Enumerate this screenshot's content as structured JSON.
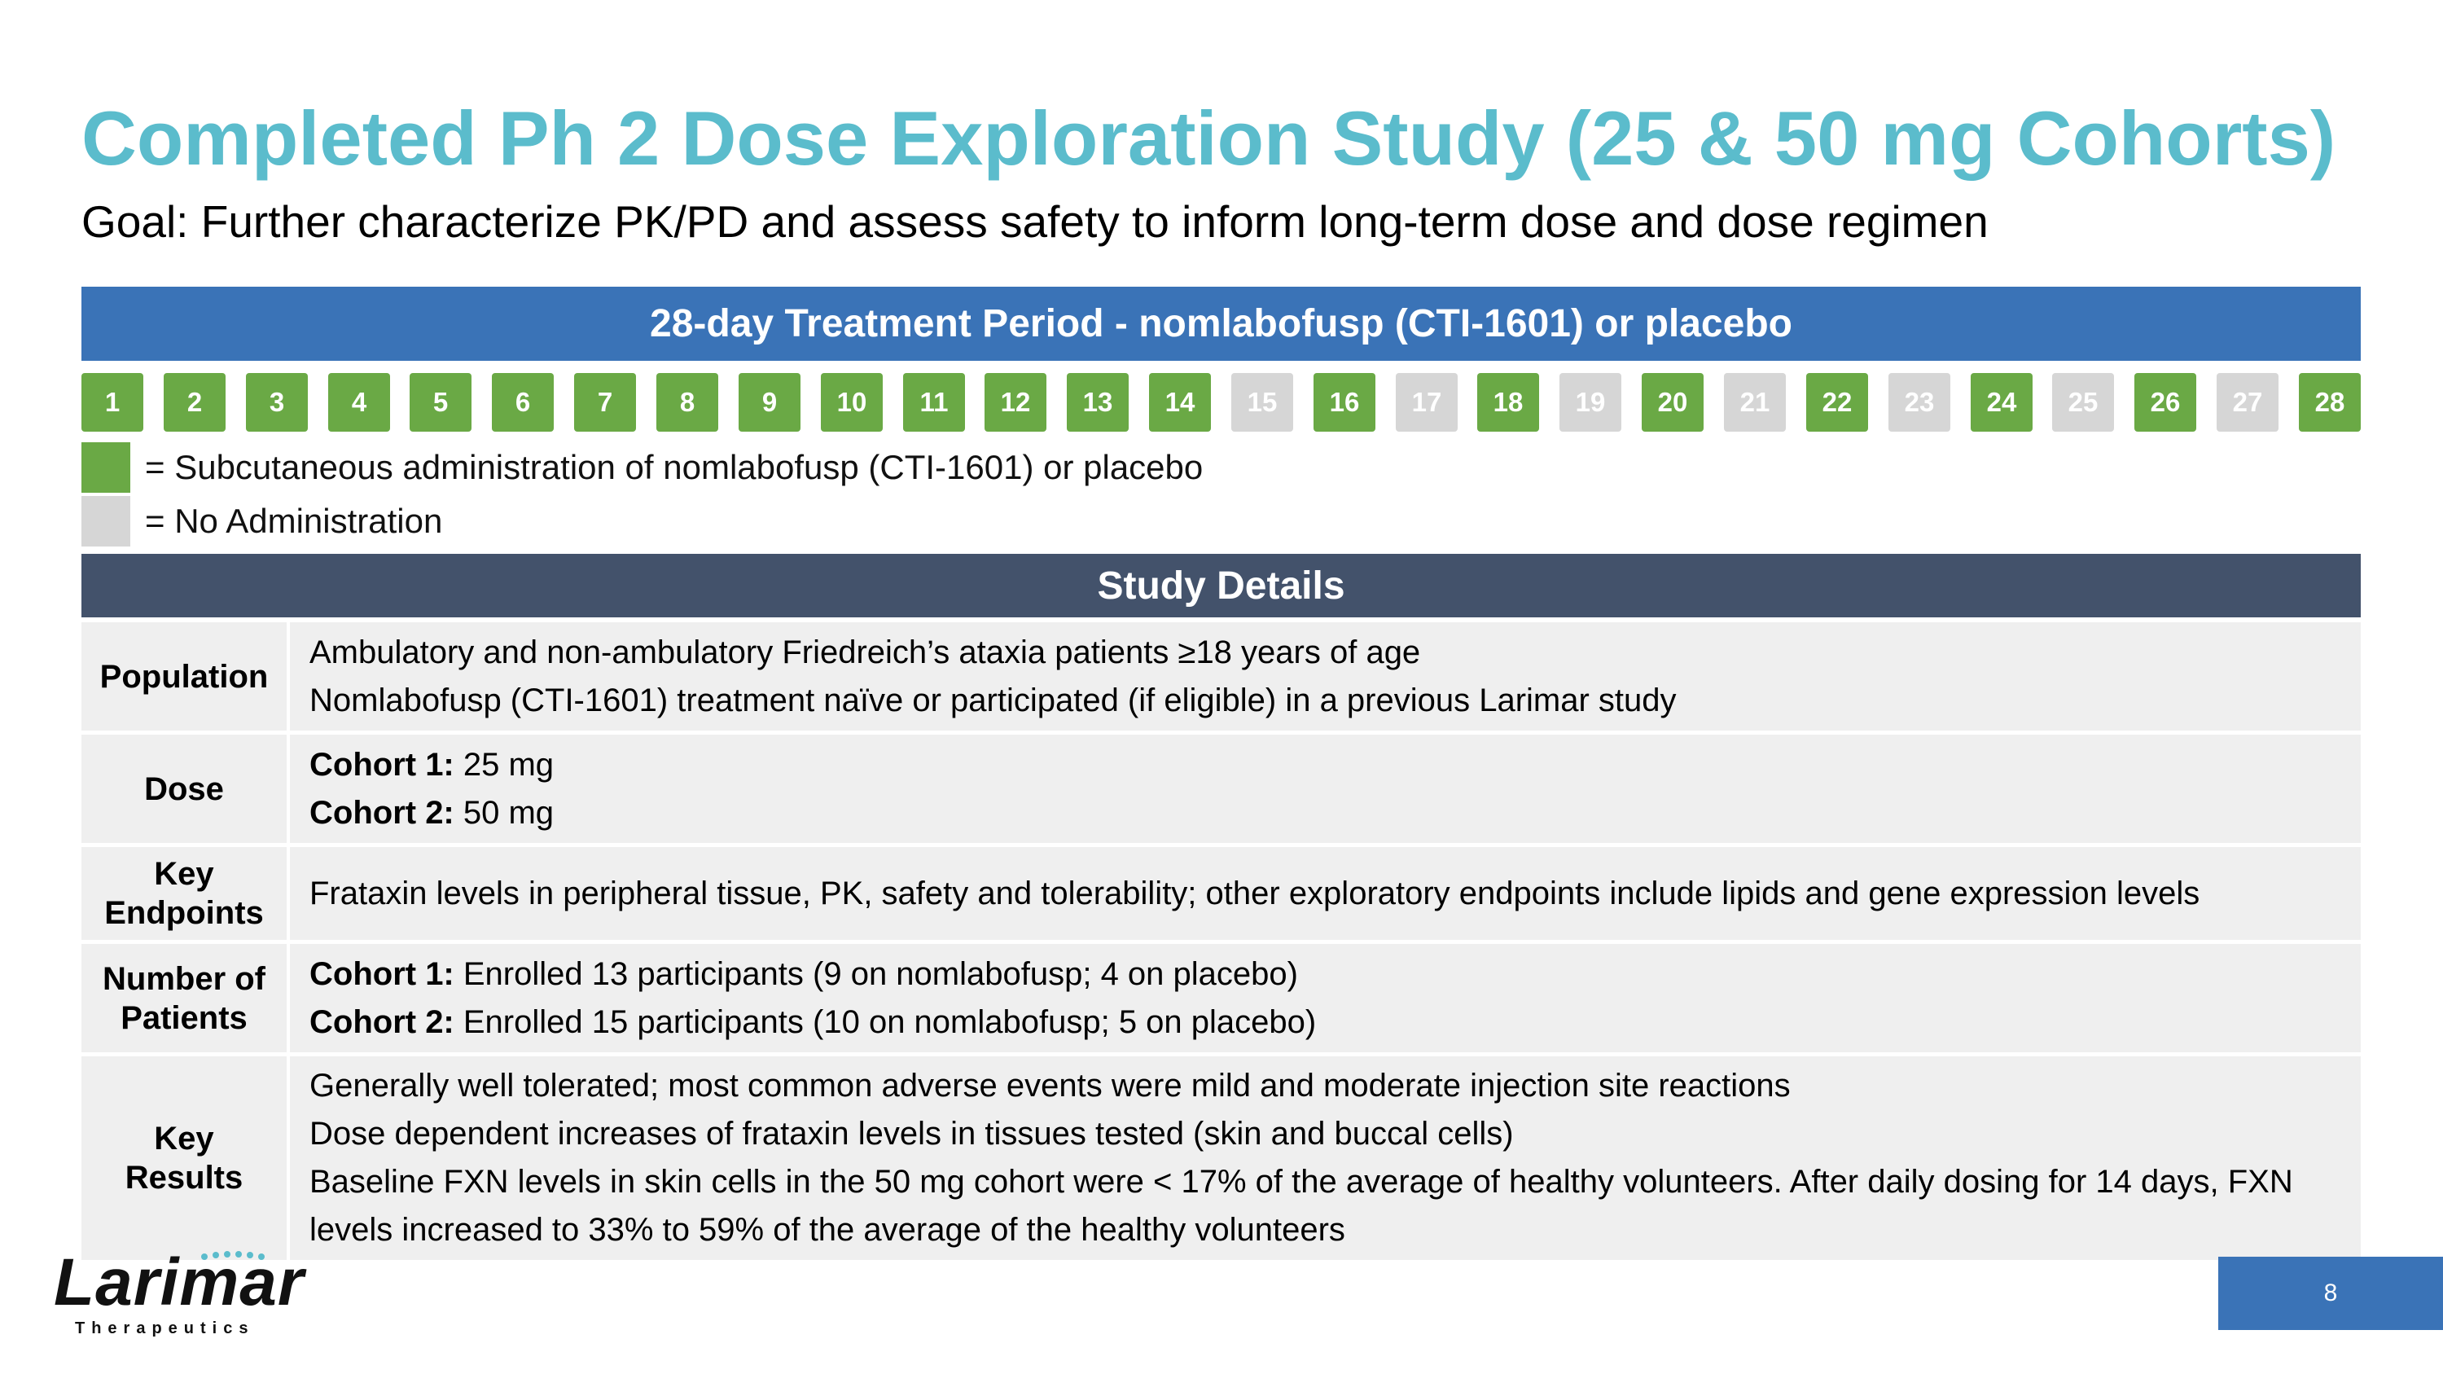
{
  "title": "Completed Ph 2 Dose Exploration Study (25 & 50 mg Cohorts)",
  "goal": "Goal: Further characterize PK/PD and assess safety to inform long-term dose and dose regimen",
  "treatment_header": "28-day Treatment Period - nomlabofusp (CTI-1601) or placebo",
  "days": [
    {
      "label": "1",
      "administered": true
    },
    {
      "label": "2",
      "administered": true
    },
    {
      "label": "3",
      "administered": true
    },
    {
      "label": "4",
      "administered": true
    },
    {
      "label": "5",
      "administered": true
    },
    {
      "label": "6",
      "administered": true
    },
    {
      "label": "7",
      "administered": true
    },
    {
      "label": "8",
      "administered": true
    },
    {
      "label": "9",
      "administered": true
    },
    {
      "label": "10",
      "administered": true
    },
    {
      "label": "11",
      "administered": true
    },
    {
      "label": "12",
      "administered": true
    },
    {
      "label": "13",
      "administered": true
    },
    {
      "label": "14",
      "administered": true
    },
    {
      "label": "15",
      "administered": false
    },
    {
      "label": "16",
      "administered": true
    },
    {
      "label": "17",
      "administered": false
    },
    {
      "label": "18",
      "administered": true
    },
    {
      "label": "19",
      "administered": false
    },
    {
      "label": "20",
      "administered": true
    },
    {
      "label": "21",
      "administered": false
    },
    {
      "label": "22",
      "administered": true
    },
    {
      "label": "23",
      "administered": false
    },
    {
      "label": "24",
      "administered": true
    },
    {
      "label": "25",
      "administered": false
    },
    {
      "label": "26",
      "administered": true
    },
    {
      "label": "27",
      "administered": false
    },
    {
      "label": "28",
      "administered": true
    }
  ],
  "legend": {
    "admin": "= Subcutaneous administration of nomlabofusp (CTI-1601) or placebo",
    "none": "= No Administration"
  },
  "details_header": "Study Details",
  "population": {
    "label": "Population",
    "line1": "Ambulatory and non-ambulatory Friedreich’s ataxia patients ≥18 years of age",
    "line2": "Nomlabofusp (CTI-1601) treatment naïve or participated (if eligible) in a previous Larimar study"
  },
  "dose": {
    "label": "Dose",
    "c1_label": "Cohort 1:",
    "c1_value": " 25 mg",
    "c2_label": "Cohort 2:",
    "c2_value": " 50 mg"
  },
  "endpoints": {
    "label_line1": "Key",
    "label_line2": "Endpoints",
    "text": "Frataxin levels in peripheral tissue, PK, safety and tolerability; other exploratory endpoints include lipids and gene expression levels"
  },
  "patients": {
    "label_line1": "Number of",
    "label_line2": "Patients",
    "c1_label": "Cohort 1:",
    "c1_value": " Enrolled 13 participants (9 on nomlabofusp; 4 on placebo)",
    "c2_label": "Cohort 2:",
    "c2_value": " Enrolled 15 participants (10 on nomlabofusp; 5 on placebo)"
  },
  "results": {
    "label_line1": "Key",
    "label_line2": "Results",
    "line1": "Generally well tolerated; most common adverse events were mild and moderate injection site reactions",
    "line2": "Dose dependent increases of frataxin levels in tissues tested (skin and buccal cells)",
    "line3": "Baseline FXN levels in skin cells in the 50 mg cohort were < 17% of the average of healthy volunteers. After daily dosing for 14 days, FXN",
    "line4": "levels increased to 33% to 59% of the average of the healthy volunteers"
  },
  "logo": {
    "name": "Larimar",
    "subtitle": "Therapeutics"
  },
  "page_number": "8",
  "colors": {
    "title": "#5bbccc",
    "header_blue": "#3a73b7",
    "header_slate": "#43526b",
    "admin_green": "#6aa945",
    "none_gray": "#d6d6d6",
    "logo_accent": "#5bbccc"
  }
}
